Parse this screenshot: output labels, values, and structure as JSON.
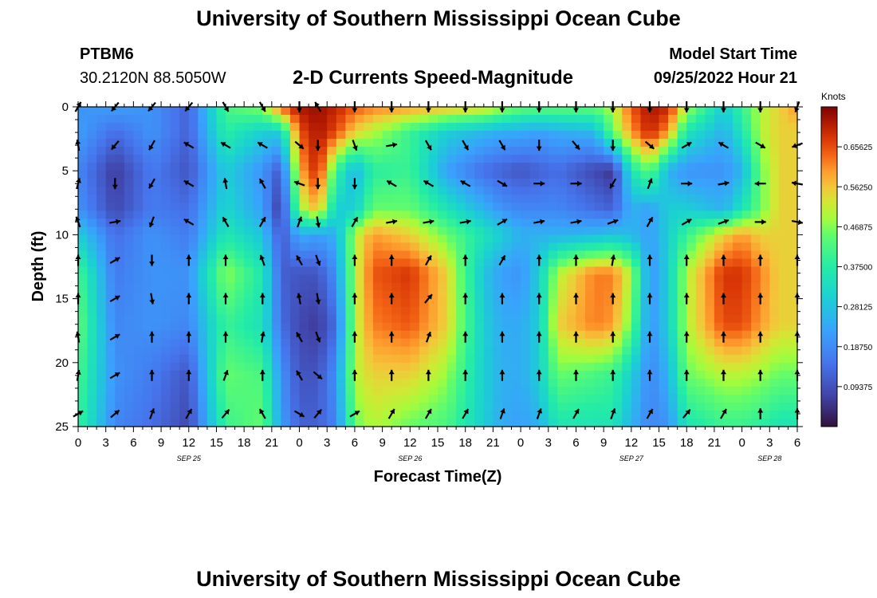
{
  "header": {
    "title": "University of Southern Mississippi Ocean Cube",
    "station": "PTBM6",
    "coords": "30.2120N  88.5050W",
    "chart_title": "2-D Currents Speed-Magnitude",
    "model_label": "Model Start Time",
    "model_time": "09/25/2022 Hour 21"
  },
  "footer": {
    "title": "University of Southern Mississippi Ocean Cube"
  },
  "chart_data": {
    "type": "heatmap",
    "title": "2-D Currents Speed-Magnitude",
    "xlabel": "Forecast Time(Z)",
    "ylabel": "Depth (ft)",
    "x_tick_labels": [
      "0",
      "3",
      "6",
      "9",
      "12",
      "15",
      "18",
      "21",
      "0",
      "3",
      "6",
      "9",
      "12",
      "15",
      "18",
      "21",
      "0",
      "3",
      "6",
      "9",
      "12",
      "15",
      "18",
      "21",
      "0",
      "3",
      "6"
    ],
    "date_labels": [
      "SEP 25",
      "SEP 26",
      "SEP 27",
      "SEP 28"
    ],
    "date_label_hours": [
      12,
      36,
      60,
      75
    ],
    "x_range_hours": [
      0,
      78
    ],
    "y_ticks": [
      0,
      5,
      10,
      15,
      20,
      25
    ],
    "ylim": [
      0,
      25
    ],
    "colorbar": {
      "unit": "Knots",
      "range": [
        0,
        0.75
      ],
      "tick_values": [
        0.65625,
        0.5625,
        0.46875,
        0.375,
        0.28125,
        0.1875,
        0.09375
      ],
      "tick_labels": [
        "0.65625",
        "0.56250",
        "0.46875",
        "0.37500",
        "0.28125",
        "0.18750",
        "0.09375"
      ]
    },
    "speed_field_anchors": {
      "x_hours": [
        0,
        4,
        8,
        12,
        16,
        20,
        22,
        24,
        26,
        28,
        30,
        32,
        36,
        40,
        44,
        46,
        48,
        50,
        52,
        56,
        58,
        60,
        62,
        64,
        66,
        70,
        72,
        74,
        76,
        78
      ],
      "depth_ft": [
        0,
        2,
        5,
        8,
        10,
        13,
        17,
        21,
        25
      ],
      "knots": [
        [
          0.2,
          0.22,
          0.2,
          0.12,
          0.42,
          0.48,
          0.65,
          0.72,
          0.73,
          0.7,
          0.65,
          0.62,
          0.6,
          0.58,
          0.55,
          0.5,
          0.45,
          0.45,
          0.45,
          0.45,
          0.5,
          0.65,
          0.72,
          0.7,
          0.5,
          0.3,
          0.4,
          0.5,
          0.55,
          0.6
        ],
        [
          0.22,
          0.14,
          0.2,
          0.12,
          0.38,
          0.3,
          0.3,
          0.65,
          0.72,
          0.66,
          0.55,
          0.5,
          0.4,
          0.3,
          0.26,
          0.24,
          0.24,
          0.22,
          0.24,
          0.26,
          0.45,
          0.6,
          0.7,
          0.6,
          0.35,
          0.25,
          0.35,
          0.5,
          0.55,
          0.55
        ],
        [
          0.18,
          0.06,
          0.16,
          0.1,
          0.3,
          0.2,
          0.1,
          0.58,
          0.7,
          0.4,
          0.25,
          0.38,
          0.4,
          0.22,
          0.14,
          0.12,
          0.1,
          0.12,
          0.14,
          0.08,
          0.05,
          0.35,
          0.45,
          0.25,
          0.2,
          0.2,
          0.25,
          0.45,
          0.55,
          0.55
        ],
        [
          0.2,
          0.08,
          0.16,
          0.14,
          0.32,
          0.22,
          0.05,
          0.48,
          0.58,
          0.3,
          0.3,
          0.45,
          0.45,
          0.35,
          0.25,
          0.2,
          0.18,
          0.18,
          0.18,
          0.14,
          0.12,
          0.25,
          0.22,
          0.3,
          0.3,
          0.25,
          0.35,
          0.45,
          0.55,
          0.55
        ],
        [
          0.3,
          0.14,
          0.2,
          0.16,
          0.36,
          0.28,
          0.1,
          0.24,
          0.22,
          0.25,
          0.5,
          0.6,
          0.55,
          0.45,
          0.35,
          0.3,
          0.25,
          0.25,
          0.25,
          0.26,
          0.28,
          0.26,
          0.22,
          0.3,
          0.4,
          0.55,
          0.6,
          0.55,
          0.55,
          0.55
        ],
        [
          0.42,
          0.16,
          0.2,
          0.2,
          0.48,
          0.36,
          0.12,
          0.1,
          0.1,
          0.2,
          0.5,
          0.65,
          0.68,
          0.55,
          0.28,
          0.22,
          0.2,
          0.3,
          0.5,
          0.62,
          0.62,
          0.5,
          0.2,
          0.3,
          0.5,
          0.68,
          0.68,
          0.62,
          0.55,
          0.55
        ],
        [
          0.45,
          0.18,
          0.2,
          0.18,
          0.4,
          0.34,
          0.14,
          0.08,
          0.06,
          0.14,
          0.5,
          0.62,
          0.65,
          0.55,
          0.3,
          0.24,
          0.24,
          0.3,
          0.55,
          0.62,
          0.6,
          0.45,
          0.2,
          0.3,
          0.5,
          0.66,
          0.66,
          0.6,
          0.55,
          0.55
        ],
        [
          0.42,
          0.2,
          0.16,
          0.1,
          0.45,
          0.42,
          0.2,
          0.1,
          0.1,
          0.2,
          0.5,
          0.55,
          0.55,
          0.48,
          0.3,
          0.25,
          0.24,
          0.3,
          0.45,
          0.42,
          0.4,
          0.3,
          0.18,
          0.25,
          0.45,
          0.5,
          0.5,
          0.48,
          0.45,
          0.45
        ],
        [
          0.4,
          0.18,
          0.14,
          0.08,
          0.4,
          0.45,
          0.22,
          0.12,
          0.12,
          0.18,
          0.45,
          0.5,
          0.45,
          0.42,
          0.3,
          0.24,
          0.22,
          0.25,
          0.35,
          0.35,
          0.35,
          0.25,
          0.18,
          0.2,
          0.35,
          0.4,
          0.4,
          0.38,
          0.35,
          0.35
        ]
      ]
    },
    "vector_field": {
      "time_hours": [
        0,
        4,
        8,
        12,
        16,
        20,
        24,
        26,
        30,
        34,
        38,
        42,
        46,
        50,
        54,
        58,
        62,
        66,
        70,
        74,
        78
      ],
      "depth_ft": [
        0,
        3,
        6,
        9,
        12,
        15,
        18,
        21,
        24
      ],
      "direction_deg": [
        [
          30,
          220,
          220,
          220,
          150,
          150,
          180,
          330,
          180,
          180,
          180,
          180,
          180,
          180,
          180,
          180,
          180,
          180,
          180,
          180,
          200
        ],
        [
          350,
          220,
          210,
          300,
          300,
          300,
          130,
          180,
          160,
          80,
          150,
          150,
          150,
          180,
          140,
          180,
          130,
          60,
          300,
          120,
          250
        ],
        [
          15,
          180,
          210,
          300,
          350,
          330,
          290,
          180,
          180,
          300,
          300,
          300,
          120,
          90,
          90,
          210,
          20,
          90,
          80,
          270,
          280
        ],
        [
          340,
          80,
          200,
          300,
          330,
          30,
          20,
          170,
          30,
          80,
          80,
          80,
          60,
          80,
          80,
          70,
          30,
          60,
          70,
          90,
          100
        ],
        [
          0,
          60,
          180,
          0,
          0,
          340,
          330,
          160,
          0,
          0,
          30,
          0,
          30,
          0,
          0,
          10,
          0,
          0,
          0,
          0,
          0
        ],
        [
          0,
          60,
          170,
          0,
          0,
          0,
          350,
          170,
          0,
          0,
          40,
          0,
          0,
          0,
          0,
          0,
          0,
          0,
          0,
          0,
          0
        ],
        [
          350,
          60,
          0,
          0,
          0,
          10,
          330,
          160,
          0,
          0,
          20,
          0,
          0,
          0,
          0,
          0,
          0,
          0,
          0,
          0,
          0
        ],
        [
          10,
          60,
          0,
          0,
          20,
          0,
          330,
          130,
          0,
          0,
          0,
          0,
          0,
          0,
          0,
          0,
          0,
          0,
          0,
          0,
          0
        ],
        [
          60,
          50,
          20,
          30,
          40,
          330,
          120,
          40,
          60,
          30,
          30,
          30,
          20,
          20,
          30,
          20,
          30,
          40,
          30,
          0,
          0
        ]
      ]
    }
  }
}
